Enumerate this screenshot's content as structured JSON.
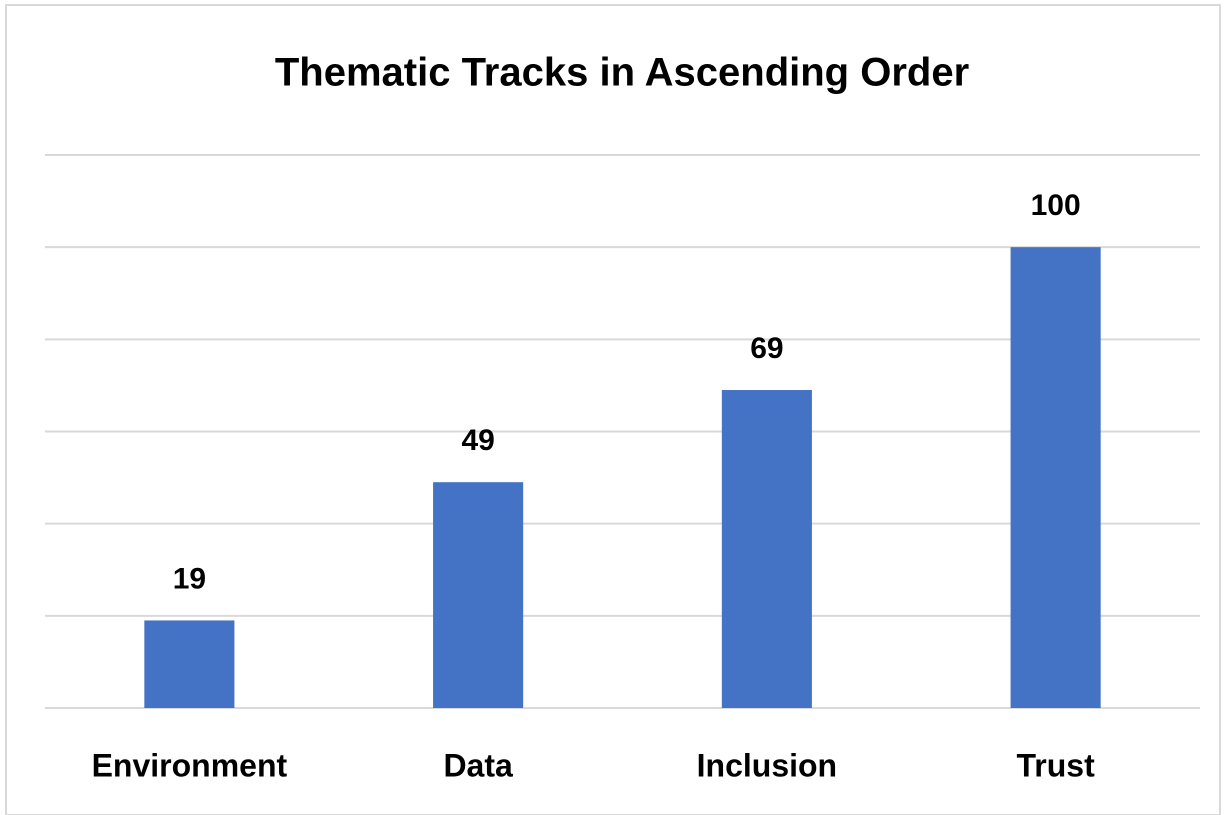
{
  "chart_data": {
    "type": "bar",
    "title": "Thematic Tracks in Ascending Order",
    "categories": [
      "Environment",
      "Data",
      "Inclusion",
      "Trust"
    ],
    "values": [
      19,
      49,
      69,
      100
    ],
    "color": "#4472c4",
    "ylim": [
      0,
      120
    ],
    "yticks": [
      0,
      20,
      40,
      60,
      80,
      100,
      120
    ],
    "grid": true
  }
}
